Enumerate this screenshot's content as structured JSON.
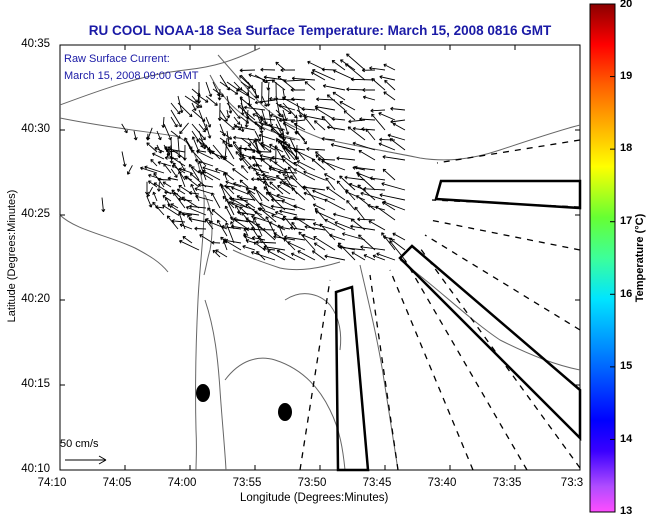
{
  "title": "RU COOL  NOAA-18  Sea Surface Temperature:  March 15, 2008 0816 GMT",
  "annotation": {
    "line1": "Raw Surface Current:",
    "line2": "March 15, 2008 09:00 GMT"
  },
  "scale": {
    "label": "50 cm/s"
  },
  "axes": {
    "xlabel": "Longitude (Degrees:Minutes)",
    "ylabel": "Latitude (Degrees:Minutes)",
    "xticks": [
      "74:10",
      "74:05",
      "74:00",
      "73:55",
      "73:50",
      "73:45",
      "73:40",
      "73:35",
      "73:3"
    ],
    "yticks": [
      "40:35",
      "40:30",
      "40:25",
      "40:20",
      "40:15",
      "40:10"
    ]
  },
  "colorbar": {
    "title": "Temperature (°C)",
    "ticks": [
      "20",
      "19",
      "18",
      "17",
      "16",
      "15",
      "14",
      "13"
    ],
    "min": 13,
    "max": 20
  },
  "colors": {
    "title": "#1a1aa6",
    "annotation": "#1a1aa6",
    "frame": "#000000",
    "land": "#ffffff"
  }
}
